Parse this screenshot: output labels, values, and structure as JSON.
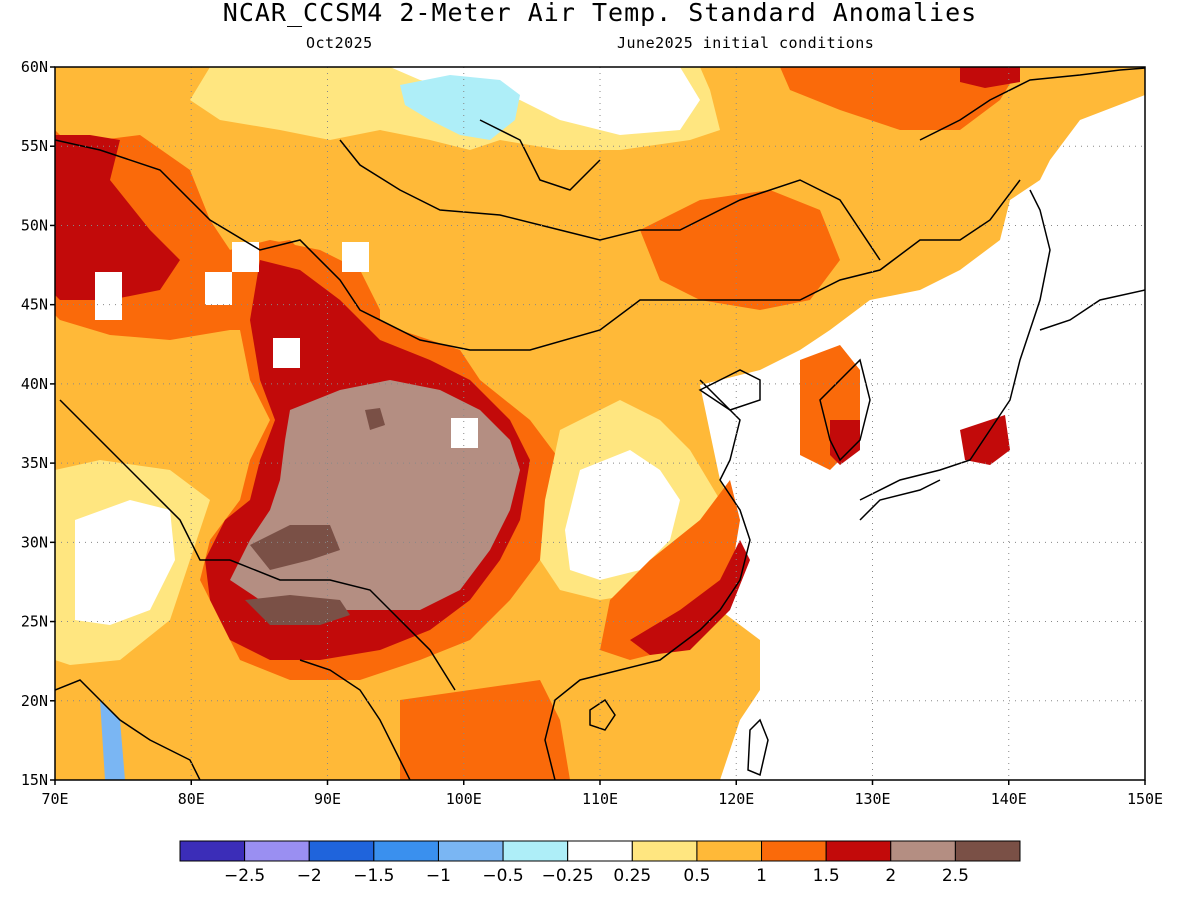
{
  "header": {
    "title": "NCAR_CCSM4 2-Meter Air Temp. Standard Anomalies",
    "valid_month": "Oct2025",
    "initial_conditions": "June2025 initial conditions"
  },
  "map": {
    "lon_range": [
      70,
      150
    ],
    "lat_range": [
      15,
      60
    ],
    "lon_ticks": [
      {
        "value": 70,
        "label": "70E"
      },
      {
        "value": 80,
        "label": "80E"
      },
      {
        "value": 90,
        "label": "90E"
      },
      {
        "value": 100,
        "label": "100E"
      },
      {
        "value": 110,
        "label": "110E"
      },
      {
        "value": 120,
        "label": "120E"
      },
      {
        "value": 130,
        "label": "130E"
      },
      {
        "value": 140,
        "label": "140E"
      },
      {
        "value": 150,
        "label": "150E"
      }
    ],
    "lat_ticks": [
      {
        "value": 15,
        "label": "15N"
      },
      {
        "value": 20,
        "label": "20N"
      },
      {
        "value": 25,
        "label": "25N"
      },
      {
        "value": 30,
        "label": "30N"
      },
      {
        "value": 35,
        "label": "35N"
      },
      {
        "value": 40,
        "label": "40N"
      },
      {
        "value": 45,
        "label": "45N"
      },
      {
        "value": 50,
        "label": "50N"
      },
      {
        "value": 55,
        "label": "55N"
      },
      {
        "value": 60,
        "label": "60N"
      }
    ]
  },
  "colorbar": {
    "colors": [
      "#3b2db8",
      "#9a8ff2",
      "#1f64dc",
      "#3a90ee",
      "#7ab6f3",
      "#aeeef8",
      "#ffffff",
      "#ffe680",
      "#ffb938",
      "#fa6a0a",
      "#c20a0a",
      "#b48e82",
      "#7a5046"
    ],
    "labels": [
      "-2.5",
      "-2",
      "-1.5",
      "-1",
      "-0.5",
      "-0.25",
      "0.25",
      "0.5",
      "1",
      "1.5",
      "2",
      "2.5"
    ]
  }
}
